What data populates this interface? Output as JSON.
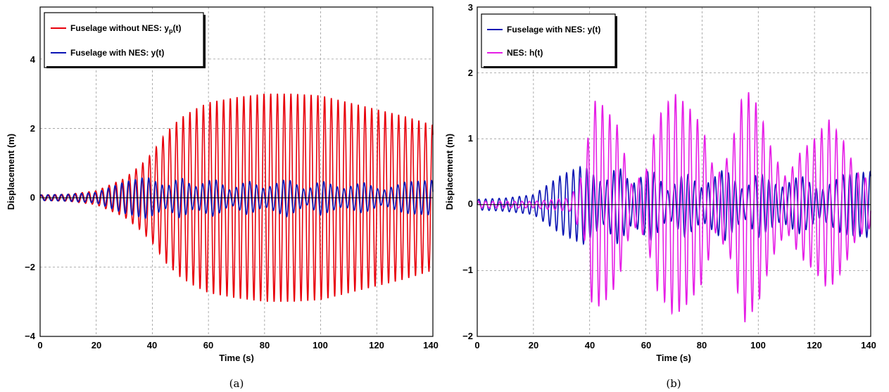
{
  "chart_data": [
    {
      "type": "line",
      "caption": "(a)",
      "xlabel": "Time (s)",
      "ylabel": "Displacement (m)",
      "xlim": [
        0,
        140
      ],
      "ylim": [
        -4,
        5.5
      ],
      "xticks": [
        "0",
        "20",
        "40",
        "60",
        "80",
        "100",
        "120",
        "140"
      ],
      "yticks": [
        "4",
        "2",
        "0",
        "−2",
        "−4"
      ],
      "grid": true,
      "legend_position": "top-left",
      "series": [
        {
          "name": "Fuselage without NES: y",
          "subscript": "p",
          "suffix": "(t)",
          "color": "#e8000b",
          "signal": {
            "period": 2.4,
            "envelope": [
              [
                0,
                0.08
              ],
              [
                10,
                0.1
              ],
              [
                20,
                0.2
              ],
              [
                30,
                0.55
              ],
              [
                36,
                0.95
              ],
              [
                40,
                1.3
              ],
              [
                45,
                1.9
              ],
              [
                50,
                2.3
              ],
              [
                55,
                2.55
              ],
              [
                60,
                2.75
              ],
              [
                70,
                2.9
              ],
              [
                80,
                3.0
              ],
              [
                90,
                3.0
              ],
              [
                100,
                2.95
              ],
              [
                110,
                2.75
              ],
              [
                120,
                2.55
              ],
              [
                130,
                2.35
              ],
              [
                140,
                2.1
              ]
            ]
          }
        },
        {
          "name": "Fuselage with NES: y",
          "subscript": "",
          "suffix": "(t)",
          "color": "#0a14b4",
          "signal": {
            "period": 2.4,
            "envelope": [
              [
                0,
                0.08
              ],
              [
                10,
                0.1
              ],
              [
                20,
                0.15
              ],
              [
                30,
                0.45
              ],
              [
                38,
                0.6
              ],
              [
                45,
                0.3
              ],
              [
                50,
                0.6
              ],
              [
                55,
                0.3
              ],
              [
                62,
                0.55
              ],
              [
                68,
                0.2
              ],
              [
                74,
                0.5
              ],
              [
                80,
                0.25
              ],
              [
                88,
                0.55
              ],
              [
                95,
                0.2
              ],
              [
                100,
                0.5
              ],
              [
                108,
                0.25
              ],
              [
                115,
                0.45
              ],
              [
                122,
                0.2
              ],
              [
                130,
                0.45
              ],
              [
                140,
                0.5
              ]
            ]
          }
        }
      ]
    },
    {
      "type": "line",
      "caption": "(b)",
      "xlabel": "Time (s)",
      "ylabel": "Displacement (m)",
      "xlim": [
        0,
        140
      ],
      "ylim": [
        -2,
        3
      ],
      "xticks": [
        "0",
        "20",
        "40",
        "60",
        "80",
        "100",
        "120",
        "140"
      ],
      "yticks": [
        "3",
        "2",
        "1",
        "0",
        "−1",
        "−2"
      ],
      "grid": true,
      "legend_position": "top-left",
      "series": [
        {
          "name": "Fuselage with NES: y",
          "subscript": "",
          "suffix": "(t)",
          "color": "#0a14b4",
          "signal": {
            "period": 2.4,
            "envelope": [
              [
                0,
                0.08
              ],
              [
                10,
                0.1
              ],
              [
                20,
                0.15
              ],
              [
                30,
                0.45
              ],
              [
                38,
                0.6
              ],
              [
                45,
                0.3
              ],
              [
                50,
                0.6
              ],
              [
                55,
                0.3
              ],
              [
                62,
                0.55
              ],
              [
                68,
                0.2
              ],
              [
                74,
                0.5
              ],
              [
                80,
                0.25
              ],
              [
                88,
                0.55
              ],
              [
                95,
                0.2
              ],
              [
                100,
                0.5
              ],
              [
                108,
                0.25
              ],
              [
                115,
                0.45
              ],
              [
                122,
                0.2
              ],
              [
                130,
                0.45
              ],
              [
                140,
                0.5
              ]
            ]
          }
        },
        {
          "name": "NES: h",
          "subscript": "",
          "suffix": "(t)",
          "color": "#e61ee6",
          "signal": {
            "period": 2.6,
            "envelope": [
              [
                0,
                0.05
              ],
              [
                20,
                0.05
              ],
              [
                33,
                0.1
              ],
              [
                38,
                0.5
              ],
              [
                41,
                1.6
              ],
              [
                45,
                1.5
              ],
              [
                50,
                1.2
              ],
              [
                55,
                0.3
              ],
              [
                60,
                0.5
              ],
              [
                64,
                1.3
              ],
              [
                70,
                1.7
              ],
              [
                75,
                1.5
              ],
              [
                80,
                1.2
              ],
              [
                85,
                0.4
              ],
              [
                90,
                0.8
              ],
              [
                95,
                1.8
              ],
              [
                100,
                1.5
              ],
              [
                105,
                0.8
              ],
              [
                110,
                0.4
              ],
              [
                115,
                0.8
              ],
              [
                120,
                1.0
              ],
              [
                125,
                1.3
              ],
              [
                130,
                1.0
              ],
              [
                135,
                0.5
              ],
              [
                140,
                0.35
              ]
            ]
          }
        }
      ]
    }
  ]
}
